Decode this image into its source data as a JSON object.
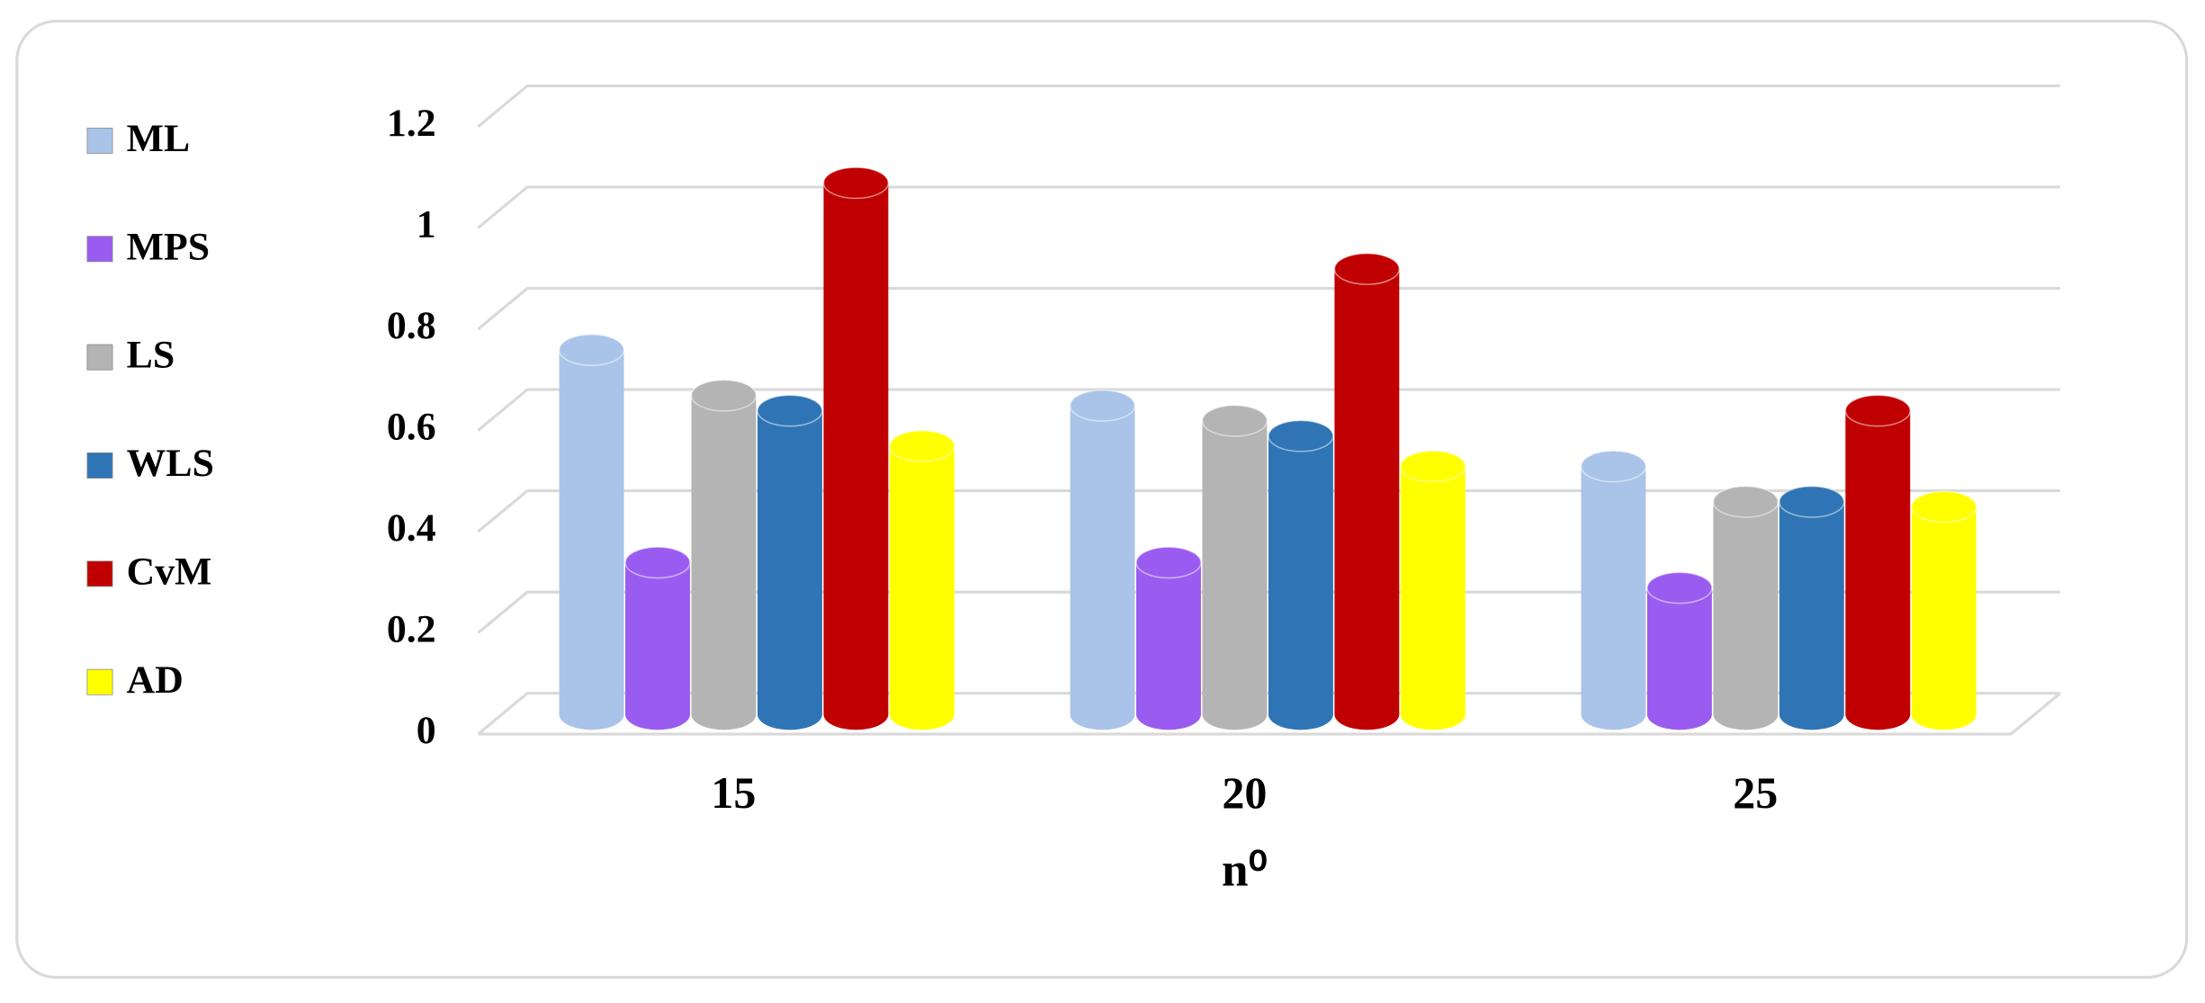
{
  "chart_data": {
    "type": "bar3d",
    "x_label": "n⁰",
    "categories": [
      "15",
      "20",
      "25"
    ],
    "series": [
      {
        "name": "ML",
        "color": "#a9c4e8",
        "values": [
          0.72,
          0.61,
          0.49
        ]
      },
      {
        "name": "MPS",
        "color": "#9a5cf0",
        "values": [
          0.3,
          0.3,
          0.25
        ]
      },
      {
        "name": "LS",
        "color": "#b4b4b4",
        "values": [
          0.63,
          0.58,
          0.42
        ]
      },
      {
        "name": "WLS",
        "color": "#2f75b5",
        "values": [
          0.6,
          0.55,
          0.42
        ]
      },
      {
        "name": "CvM",
        "color": "#c00000",
        "values": [
          1.05,
          0.88,
          0.6
        ]
      },
      {
        "name": "AD",
        "color": "#ffff00",
        "values": [
          0.53,
          0.49,
          0.41
        ]
      }
    ],
    "ylim": [
      0,
      1.2
    ],
    "yticks": [
      0,
      0.2,
      0.4,
      0.6,
      0.8,
      1,
      1.2
    ],
    "grid": true,
    "legend": "left"
  }
}
